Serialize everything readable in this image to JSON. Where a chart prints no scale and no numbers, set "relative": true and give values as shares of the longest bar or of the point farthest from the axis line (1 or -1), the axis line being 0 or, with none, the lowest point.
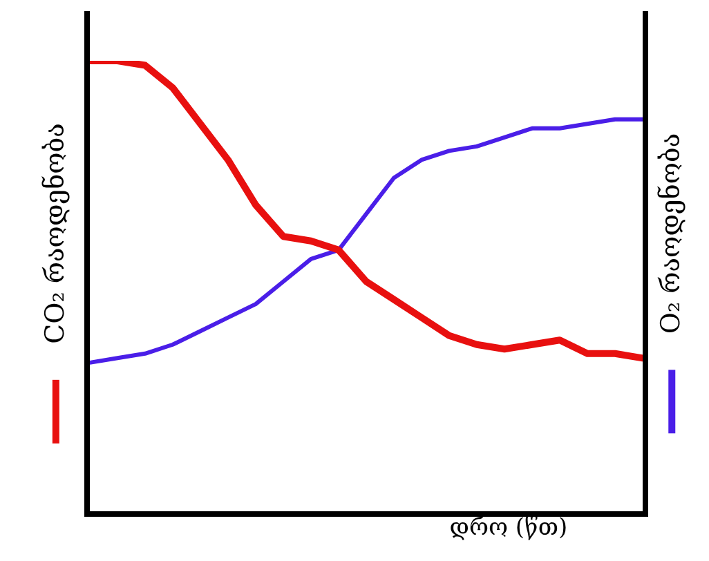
{
  "chart_data": {
    "type": "line",
    "relative": true,
    "xlabel": "დრო (წთ)",
    "ylabel": "CO₂ რაოდენობა",
    "y2label": "O₂ რაოდენობა",
    "categories": [
      null,
      null,
      null,
      null,
      null,
      null,
      null,
      null,
      null,
      null,
      null,
      null,
      null,
      null,
      null,
      null,
      null,
      null,
      null,
      null,
      null
    ],
    "legend": false,
    "marker": "none",
    "line_style": "solid",
    "series": [
      {
        "color": "#e8100f",
        "values": [
          1.0,
          1.0,
          0.99,
          0.94,
          0.86,
          0.78,
          0.68,
          0.61,
          0.6,
          0.58,
          0.51,
          0.47,
          0.43,
          0.39,
          0.37,
          0.36,
          0.37,
          0.38,
          0.35,
          0.35,
          0.34
        ]
      },
      {
        "color": "#4a1ee8",
        "values": [
          0.33,
          0.34,
          0.35,
          0.37,
          0.4,
          0.43,
          0.46,
          0.51,
          0.56,
          0.58,
          0.66,
          0.74,
          0.78,
          0.8,
          0.81,
          0.83,
          0.85,
          0.85,
          0.86,
          0.87,
          0.87
        ]
      }
    ]
  }
}
